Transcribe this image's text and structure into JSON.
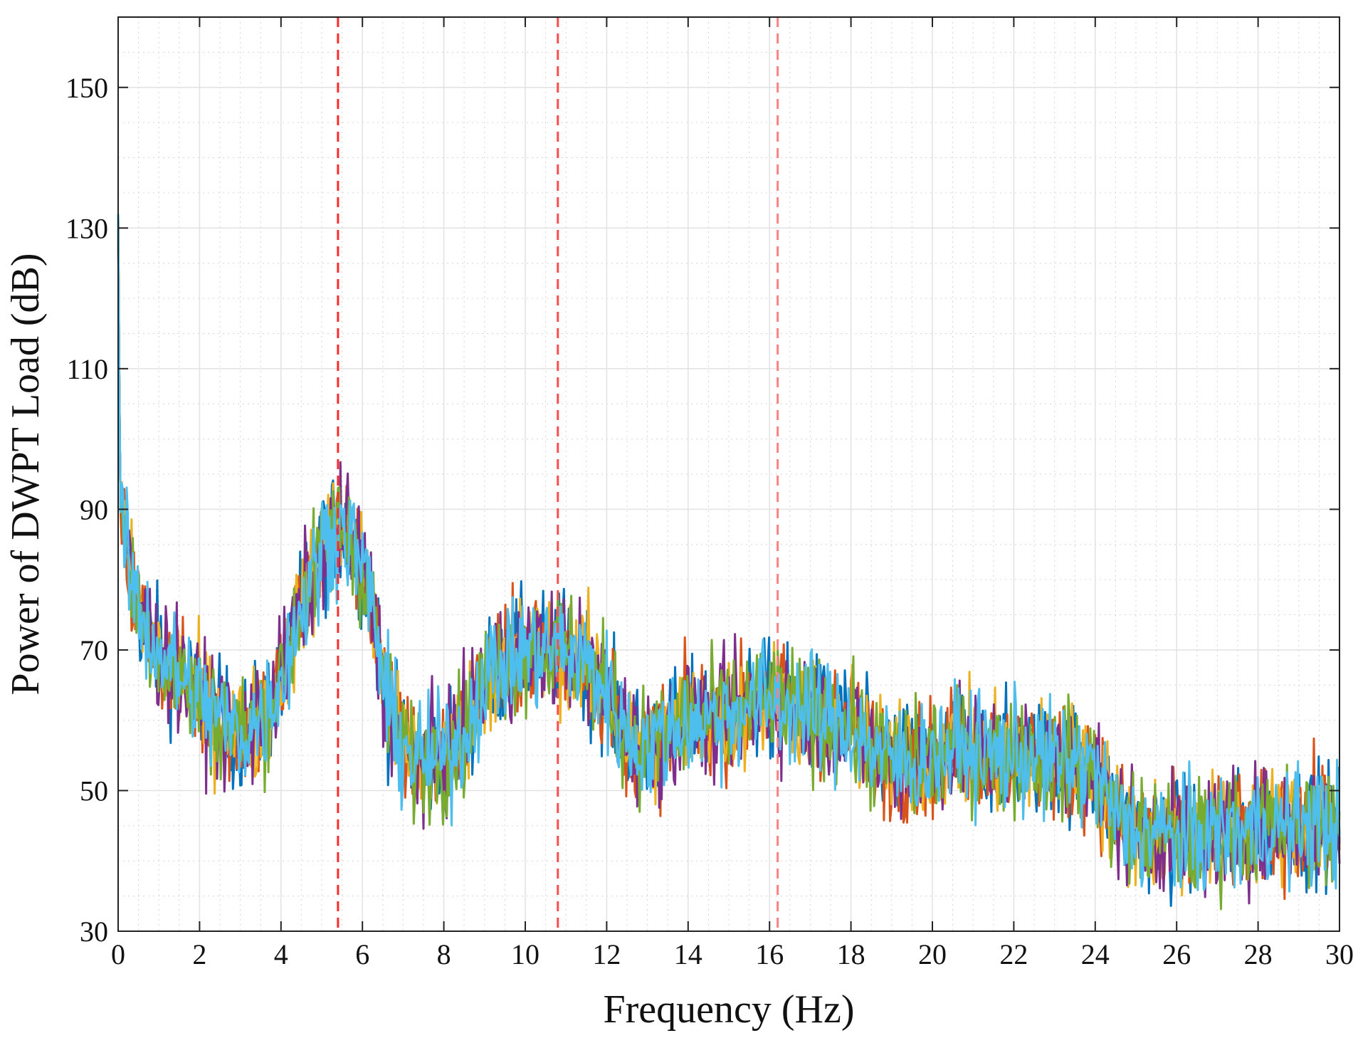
{
  "chart_data": {
    "type": "line",
    "title": "",
    "xlabel": "Frequency (Hz)",
    "ylabel": "Power of DWPT Load (dB)",
    "xlim": [
      0,
      30
    ],
    "ylim": [
      30,
      160
    ],
    "xticks": [
      0,
      2,
      4,
      6,
      8,
      10,
      12,
      14,
      16,
      18,
      20,
      22,
      24,
      26,
      28,
      30
    ],
    "yticks": [
      30,
      50,
      70,
      90,
      110,
      130,
      150
    ],
    "xtick_labels": [
      "0",
      "2",
      "4",
      "6",
      "8",
      "10",
      "12",
      "14",
      "16",
      "18",
      "20",
      "22",
      "24",
      "26",
      "28",
      "30"
    ],
    "ytick_labels": [
      "30",
      "50",
      "70",
      "90",
      "110",
      "130",
      "150"
    ],
    "grid": true,
    "minor_grid": true,
    "legend": "none",
    "series_colors": [
      "#0072BD",
      "#D95319",
      "#EDB120",
      "#7E2F8E",
      "#77AC30",
      "#4DBEEE"
    ],
    "series_envelope": {
      "x": [
        0,
        0.05,
        0.3,
        0.6,
        1.0,
        1.5,
        2.0,
        2.5,
        3.0,
        3.5,
        4.0,
        4.5,
        5.0,
        5.4,
        5.8,
        6.2,
        6.6,
        7.0,
        7.5,
        8.0,
        8.5,
        9.0,
        9.5,
        10.0,
        10.5,
        11.0,
        11.5,
        12.0,
        12.5,
        13.0,
        13.5,
        14.0,
        14.5,
        15.0,
        15.5,
        16.0,
        16.5,
        17.0,
        17.5,
        18.0,
        18.5,
        19.0,
        19.5,
        20.0,
        20.5,
        21.0,
        21.5,
        22.0,
        22.5,
        23.0,
        23.5,
        24.0,
        24.5,
        25.0,
        25.5,
        26.0,
        26.5,
        27.0,
        27.5,
        28.0,
        28.5,
        29.0,
        29.5,
        30.0
      ],
      "y": [
        132,
        90,
        80,
        74,
        70,
        66,
        63,
        60,
        58,
        60,
        66,
        76,
        84,
        88,
        85,
        78,
        62,
        56,
        54,
        55,
        58,
        66,
        68,
        70,
        70,
        70,
        68,
        64,
        58,
        56,
        58,
        60,
        60,
        61,
        62,
        63,
        62,
        61,
        60,
        59,
        56,
        54,
        54,
        55,
        56,
        56,
        55,
        55,
        55,
        54,
        54,
        53,
        46,
        44,
        44,
        43,
        43,
        44,
        44,
        45,
        45,
        45,
        46,
        45
      ]
    },
    "reference_lines": [
      {
        "x": 5.4,
        "color": "#ff2a2a",
        "style": "dashed"
      },
      {
        "x": 10.8,
        "color": "#ff4d4d",
        "style": "dashed"
      },
      {
        "x": 16.2,
        "color": "#ff8080",
        "style": "dashed"
      }
    ]
  }
}
